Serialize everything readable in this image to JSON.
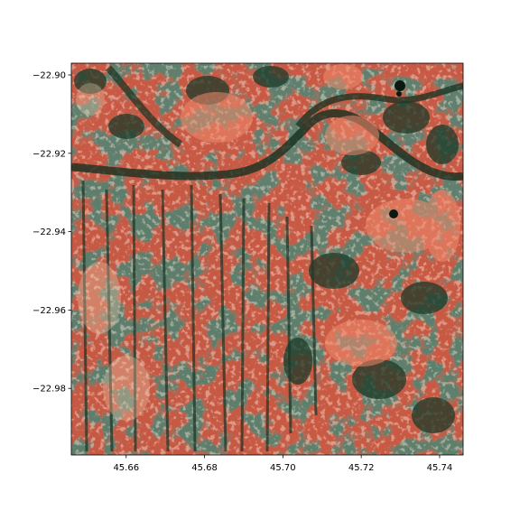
{
  "map": {
    "type": "satellite-raster",
    "colors": {
      "bare_soil": "#d9644b",
      "bright_soil": "#f0a080",
      "vegetation": "#1e3c2a",
      "dark_vegetation": "#0f2a1c",
      "pale_ground": "#e8c8a8"
    }
  },
  "axes": {
    "x_ticks": [
      "45.66",
      "45.68",
      "45.70",
      "45.72",
      "45.74"
    ],
    "y_ticks": [
      "−22.90",
      "−22.92",
      "−22.94",
      "−22.96",
      "−22.98"
    ],
    "x_tick_values": [
      45.66,
      45.68,
      45.7,
      45.72,
      45.74
    ],
    "y_tick_values": [
      -22.9,
      -22.92,
      -22.94,
      -22.96,
      -22.98
    ],
    "xlim": [
      45.646,
      45.746
    ],
    "ylim": [
      -22.997,
      -22.897
    ]
  }
}
